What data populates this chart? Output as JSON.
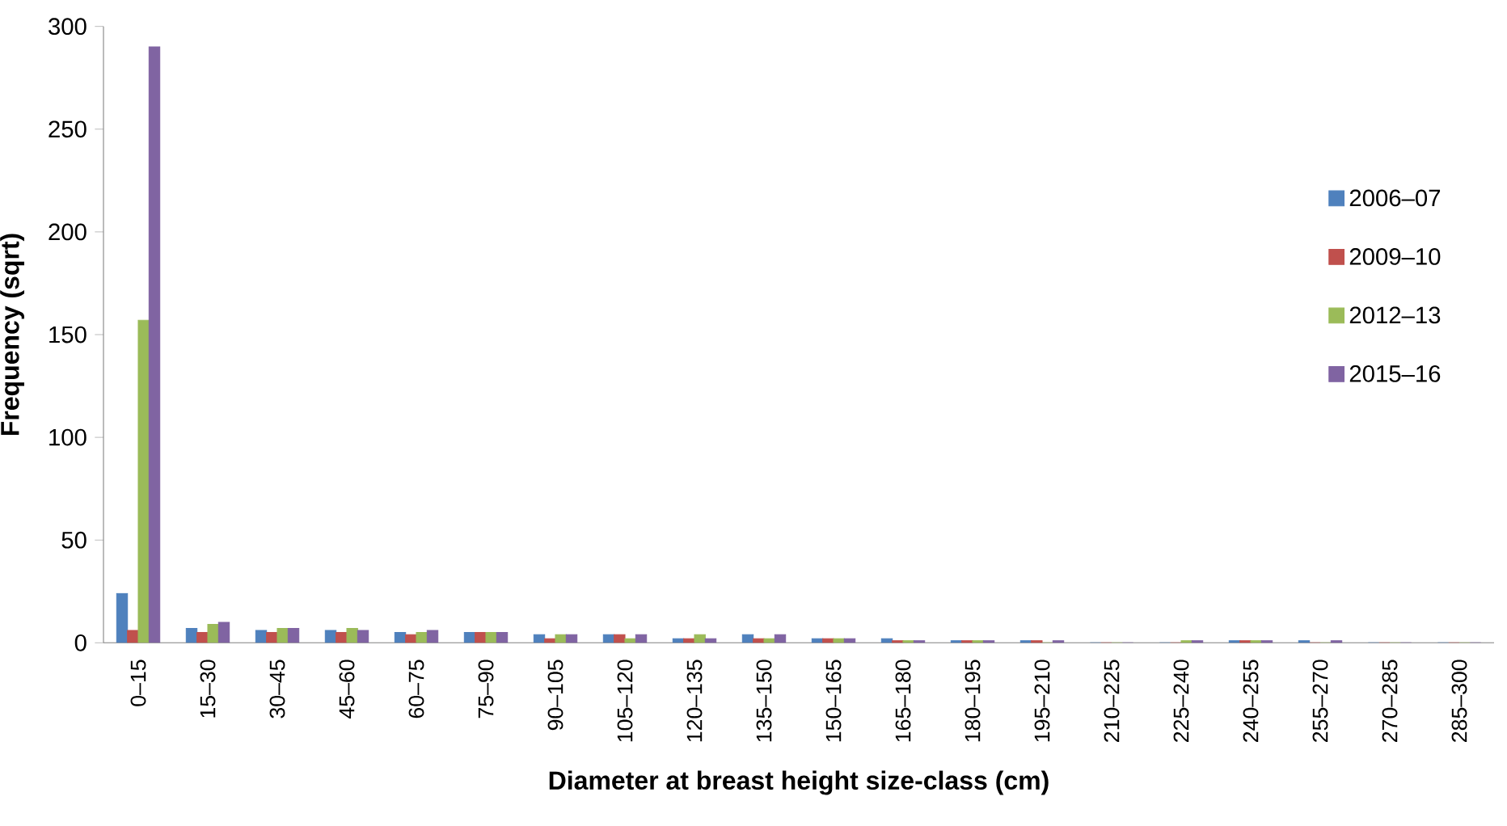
{
  "chart_data": {
    "type": "bar",
    "xlabel": "Diameter at breast height size-class (cm)",
    "ylabel": "Frequency (sqrt)",
    "categories": [
      "0–15",
      "15–30",
      "30–45",
      "45–60",
      "60–75",
      "75–90",
      "90–105",
      "105–120",
      "120–135",
      "135–150",
      "150–165",
      "165–180",
      "180–195",
      "195–210",
      "210–225",
      "225–240",
      "240–255",
      "255–270",
      "270–285",
      "285–300"
    ],
    "series": [
      {
        "name": "2006–07",
        "color": "#4f81bd",
        "values": [
          24,
          7,
          6,
          6,
          5,
          5,
          4,
          4,
          2,
          4,
          2,
          2,
          1,
          1,
          0,
          0,
          1,
          1,
          0,
          0
        ]
      },
      {
        "name": "2009–10",
        "color": "#c0504d",
        "values": [
          6,
          5,
          5,
          5,
          4,
          5,
          2,
          4,
          2,
          2,
          2,
          1,
          1,
          1,
          0,
          0,
          1,
          0,
          0,
          0
        ]
      },
      {
        "name": "2012–13",
        "color": "#9bbb59",
        "values": [
          157,
          9,
          7,
          7,
          5,
          5,
          4,
          2,
          4,
          2,
          2,
          1,
          1,
          0,
          0,
          1,
          1,
          0,
          0,
          0
        ]
      },
      {
        "name": "2015–16",
        "color": "#8064a2",
        "values": [
          290,
          10,
          7,
          6,
          6,
          5,
          4,
          4,
          2,
          4,
          2,
          1,
          1,
          1,
          0,
          1,
          1,
          1,
          0,
          0
        ]
      }
    ],
    "ylim": [
      0,
      300
    ],
    "yticks": [
      0,
      50,
      100,
      150,
      200,
      250,
      300
    ],
    "grid": false,
    "legend": "right"
  }
}
